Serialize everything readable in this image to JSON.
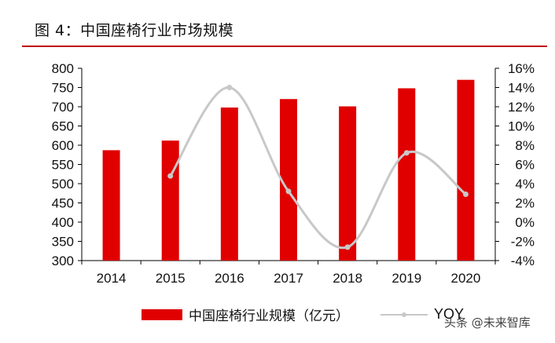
{
  "title": "图 4：中国座椅行业市场规模",
  "watermark": "头条 @未来智库",
  "colors": {
    "bar": "#e00000",
    "line": "#c8c8c8",
    "title_rule": "#c00000"
  },
  "chart_data": {
    "type": "bar+line",
    "categories": [
      "2014",
      "2015",
      "2016",
      "2017",
      "2018",
      "2019",
      "2020"
    ],
    "series": [
      {
        "name": "中国座椅行业规模（亿元）",
        "type": "bar",
        "axis": "left",
        "values": [
          587,
          612,
          698,
          720,
          701,
          748,
          770
        ]
      },
      {
        "name": "YOY",
        "type": "line",
        "axis": "right",
        "values": [
          null,
          4.8,
          14.0,
          3.2,
          -2.6,
          7.2,
          2.9
        ]
      }
    ],
    "y_left": {
      "min": 300,
      "max": 800,
      "step": 50
    },
    "y_right": {
      "min": -4,
      "max": 16,
      "step": 2,
      "unit": "%"
    },
    "legend": "bottom",
    "grid": false
  }
}
